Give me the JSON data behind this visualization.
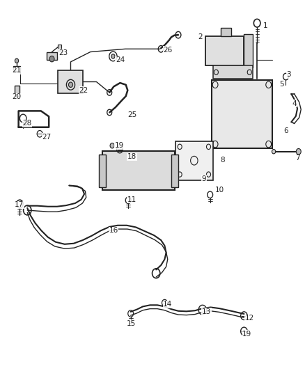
{
  "title": "",
  "background_color": "#ffffff",
  "fig_width": 4.38,
  "fig_height": 5.33,
  "dpi": 100,
  "line_color": "#222222",
  "label_fontsize": 7.5
}
